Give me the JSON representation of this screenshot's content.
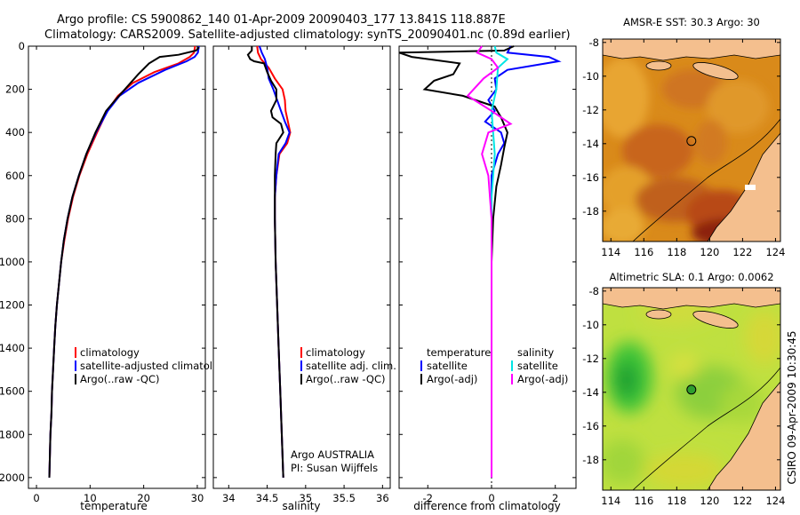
{
  "title": {
    "line1": "Argo profile: CS 5900862_140 01-Apr-2009 20090403_177 13.841S 118.887E",
    "line2": "Climatology: CARS2009. Satellite-adjusted climatology: synTS_20090401.nc (0.89d earlier)"
  },
  "colors": {
    "climatology": "#ff0000",
    "satellite": "#0000ff",
    "argo": "#000000",
    "satellite_salinity": "#00e5e5",
    "argo_salinity": "#ff00ff",
    "land": "#f4bf8e"
  },
  "chart_data": [
    {
      "type": "line",
      "name": "temperature-profile",
      "xlabel": "temperature",
      "ylabel": "",
      "xlim": [
        -1.5,
        31.5
      ],
      "ylim": [
        2050,
        0
      ],
      "xticks": [
        0,
        10,
        20,
        30
      ],
      "yticks": [
        0,
        200,
        400,
        600,
        800,
        1000,
        1200,
        1400,
        1600,
        1800,
        2000
      ],
      "legend": [
        "climatology",
        "satellite-adjusted climatology",
        "Argo(..raw -QC)"
      ],
      "series": [
        {
          "name": "climatology",
          "color": "#ff0000",
          "points": [
            [
              29.6,
              0
            ],
            [
              29.4,
              30
            ],
            [
              28.6,
              50
            ],
            [
              26.5,
              80
            ],
            [
              22,
              120
            ],
            [
              18,
              170
            ],
            [
              15.2,
              230
            ],
            [
              13.2,
              300
            ],
            [
              11.3,
              400
            ],
            [
              9.5,
              500
            ],
            [
              8.0,
              600
            ],
            [
              6.8,
              700
            ],
            [
              5.9,
              800
            ],
            [
              5.2,
              900
            ],
            [
              4.6,
              1000
            ],
            [
              4.2,
              1100
            ],
            [
              3.8,
              1200
            ],
            [
              3.5,
              1300
            ],
            [
              3.3,
              1400
            ],
            [
              3.1,
              1500
            ],
            [
              2.9,
              1600
            ],
            [
              2.8,
              1700
            ],
            [
              2.6,
              1800
            ],
            [
              2.5,
              1900
            ],
            [
              2.4,
              2000
            ]
          ]
        },
        {
          "name": "satellite-adjusted climatology",
          "color": "#0000ff",
          "points": [
            [
              30.3,
              0
            ],
            [
              30.1,
              30
            ],
            [
              29.5,
              50
            ],
            [
              28,
              70
            ],
            [
              24,
              110
            ],
            [
              19,
              170
            ],
            [
              15.5,
              230
            ],
            [
              13.3,
              300
            ],
            [
              11.1,
              400
            ],
            [
              9.3,
              500
            ],
            [
              7.9,
              600
            ],
            [
              6.7,
              700
            ],
            [
              5.8,
              800
            ],
            [
              5.1,
              900
            ],
            [
              4.6,
              1000
            ],
            [
              4.2,
              1100
            ],
            [
              3.8,
              1200
            ],
            [
              3.5,
              1300
            ],
            [
              3.3,
              1400
            ],
            [
              3.1,
              1500
            ],
            [
              2.9,
              1600
            ],
            [
              2.8,
              1700
            ],
            [
              2.6,
              1800
            ],
            [
              2.5,
              1900
            ],
            [
              2.4,
              2000
            ]
          ]
        },
        {
          "name": "Argo(..raw -QC)",
          "color": "#000000",
          "points": [
            [
              30.3,
              5
            ],
            [
              29.8,
              20
            ],
            [
              26.5,
              40
            ],
            [
              23,
              50
            ],
            [
              21,
              80
            ],
            [
              19,
              130
            ],
            [
              16.5,
              200
            ],
            [
              14.7,
              250
            ],
            [
              13,
              300
            ],
            [
              11,
              400
            ],
            [
              9.3,
              500
            ],
            [
              7.9,
              600
            ],
            [
              6.7,
              700
            ],
            [
              5.8,
              800
            ],
            [
              5.1,
              900
            ],
            [
              4.6,
              1000
            ],
            [
              4.2,
              1100
            ],
            [
              3.8,
              1200
            ],
            [
              3.5,
              1300
            ],
            [
              3.3,
              1400
            ],
            [
              3.1,
              1500
            ],
            [
              2.9,
              1600
            ],
            [
              2.8,
              1700
            ],
            [
              2.6,
              1800
            ],
            [
              2.5,
              1900
            ],
            [
              2.4,
              2000
            ]
          ]
        }
      ]
    },
    {
      "type": "line",
      "name": "salinity-profile",
      "xlabel": "salinity",
      "ylabel": "",
      "xlim": [
        33.8,
        36.1
      ],
      "ylim": [
        2050,
        0
      ],
      "xticks": [
        34,
        34.5,
        35,
        35.5,
        36
      ],
      "legend": [
        "climatology",
        "satellite adj. clim.",
        "Argo(..raw -QC)"
      ],
      "annotations": [
        "Argo AUSTRALIA",
        "PI: Susan Wijffels"
      ],
      "series": [
        {
          "name": "climatology",
          "color": "#ff0000",
          "points": [
            [
              34.37,
              0
            ],
            [
              34.38,
              30
            ],
            [
              34.42,
              60
            ],
            [
              34.52,
              100
            ],
            [
              34.6,
              150
            ],
            [
              34.7,
              200
            ],
            [
              34.73,
              250
            ],
            [
              34.74,
              300
            ],
            [
              34.77,
              350
            ],
            [
              34.8,
              400
            ],
            [
              34.76,
              450
            ],
            [
              34.66,
              500
            ],
            [
              34.62,
              600
            ],
            [
              34.6,
              700
            ],
            [
              34.6,
              800
            ],
            [
              34.61,
              1000
            ],
            [
              34.63,
              1200
            ],
            [
              34.65,
              1400
            ],
            [
              34.67,
              1600
            ],
            [
              34.69,
              1800
            ],
            [
              34.71,
              2000
            ]
          ]
        },
        {
          "name": "satellite adj. clim.",
          "color": "#0000ff",
          "points": [
            [
              34.4,
              0
            ],
            [
              34.43,
              30
            ],
            [
              34.47,
              60
            ],
            [
              34.5,
              100
            ],
            [
              34.52,
              150
            ],
            [
              34.58,
              200
            ],
            [
              34.63,
              250
            ],
            [
              34.68,
              300
            ],
            [
              34.73,
              350
            ],
            [
              34.79,
              400
            ],
            [
              34.74,
              450
            ],
            [
              34.65,
              500
            ],
            [
              34.62,
              600
            ],
            [
              34.6,
              700
            ],
            [
              34.6,
              800
            ],
            [
              34.61,
              1000
            ],
            [
              34.63,
              1200
            ],
            [
              34.65,
              1400
            ],
            [
              34.67,
              1600
            ],
            [
              34.69,
              1800
            ],
            [
              34.71,
              2000
            ]
          ]
        },
        {
          "name": "Argo(..raw -QC)",
          "color": "#000000",
          "points": [
            [
              34.3,
              0
            ],
            [
              34.3,
              20
            ],
            [
              34.25,
              40
            ],
            [
              34.28,
              60
            ],
            [
              34.33,
              70
            ],
            [
              34.46,
              80
            ],
            [
              34.5,
              120
            ],
            [
              34.55,
              160
            ],
            [
              34.62,
              200
            ],
            [
              34.62,
              250
            ],
            [
              34.55,
              300
            ],
            [
              34.57,
              330
            ],
            [
              34.68,
              360
            ],
            [
              34.71,
              400
            ],
            [
              34.62,
              450
            ],
            [
              34.61,
              500
            ],
            [
              34.6,
              600
            ],
            [
              34.6,
              700
            ],
            [
              34.6,
              800
            ],
            [
              34.61,
              1000
            ],
            [
              34.63,
              1200
            ],
            [
              34.65,
              1400
            ],
            [
              34.67,
              1600
            ],
            [
              34.69,
              1800
            ],
            [
              34.71,
              2000
            ]
          ]
        }
      ]
    },
    {
      "type": "line",
      "name": "difference-from-climatology",
      "xlabel": "difference from climatology",
      "ylabel": "",
      "xlim": [
        -2.9,
        2.65
      ],
      "ylim": [
        2050,
        0
      ],
      "xticks": [
        -2,
        0,
        2
      ],
      "legend_groups": [
        {
          "title": "temperature",
          "items": [
            "satellite",
            "Argo(-adj)"
          ]
        },
        {
          "title": "salinity",
          "items": [
            "satellite",
            "Argo(-adj)"
          ]
        }
      ],
      "series": [
        {
          "name": "temperature satellite",
          "color": "#0000ff",
          "points": [
            [
              0.6,
              0
            ],
            [
              0.5,
              30
            ],
            [
              1.8,
              50
            ],
            [
              2.1,
              70
            ],
            [
              0.5,
              110
            ],
            [
              0.1,
              150
            ],
            [
              0.15,
              200
            ],
            [
              -0.1,
              250
            ],
            [
              0.1,
              300
            ],
            [
              -0.2,
              350
            ],
            [
              0.3,
              400
            ],
            [
              0.4,
              450
            ],
            [
              0.2,
              500
            ],
            [
              0.0,
              600
            ],
            [
              0.0,
              800
            ],
            [
              0.0,
              1000
            ],
            [
              0.0,
              1500
            ],
            [
              0.0,
              2000
            ]
          ]
        },
        {
          "name": "temperature Argo(-adj)",
          "color": "#000000",
          "points": [
            [
              0.7,
              0
            ],
            [
              0.4,
              20
            ],
            [
              -2.9,
              30
            ],
            [
              -2.5,
              50
            ],
            [
              -1.0,
              80
            ],
            [
              -1.2,
              130
            ],
            [
              -1.8,
              160
            ],
            [
              -2.1,
              200
            ],
            [
              -0.9,
              230
            ],
            [
              0.1,
              280
            ],
            [
              0.3,
              330
            ],
            [
              0.5,
              400
            ],
            [
              0.4,
              470
            ],
            [
              0.3,
              550
            ],
            [
              0.15,
              650
            ],
            [
              0.05,
              800
            ],
            [
              0.0,
              1000
            ],
            [
              0.0,
              1500
            ],
            [
              0.0,
              2000
            ]
          ]
        },
        {
          "name": "salinity satellite",
          "color": "#00e5e5",
          "points": [
            [
              0.1,
              0
            ],
            [
              0.15,
              30
            ],
            [
              0.5,
              60
            ],
            [
              0.2,
              100
            ],
            [
              0.15,
              200
            ],
            [
              0.0,
              300
            ],
            [
              0.05,
              400
            ],
            [
              0.1,
              500
            ],
            [
              0.0,
              700
            ],
            [
              0.0,
              1000
            ],
            [
              0.0,
              1500
            ],
            [
              0.0,
              2000
            ]
          ]
        },
        {
          "name": "salinity Argo(-adj)",
          "color": "#ff00ff",
          "points": [
            [
              -0.3,
              0
            ],
            [
              -0.45,
              30
            ],
            [
              0.0,
              60
            ],
            [
              0.2,
              100
            ],
            [
              -0.25,
              150
            ],
            [
              -0.75,
              230
            ],
            [
              0.0,
              300
            ],
            [
              0.6,
              360
            ],
            [
              -0.1,
              400
            ],
            [
              -0.3,
              500
            ],
            [
              -0.1,
              600
            ],
            [
              0.0,
              800
            ],
            [
              0.0,
              1000
            ],
            [
              0.0,
              1500
            ],
            [
              0.0,
              2000
            ]
          ]
        }
      ]
    },
    {
      "type": "heatmap",
      "name": "sst-map",
      "title": "AMSR-E SST: 30.3 Argo: 30",
      "xlim": [
        113.5,
        124.3
      ],
      "ylim": [
        -19.8,
        -7.8
      ],
      "xticks": [
        114,
        116,
        118,
        120,
        122,
        124
      ],
      "yticks": [
        -8,
        -10,
        -12,
        -14,
        -16,
        -18
      ],
      "marker": {
        "lon": 118.887,
        "lat": -13.841
      }
    },
    {
      "type": "heatmap",
      "name": "sla-map",
      "title": "Altimetric SLA: 0.1 Argo: 0.0062",
      "xlim": [
        113.5,
        124.3
      ],
      "ylim": [
        -19.8,
        -7.8
      ],
      "xticks": [
        114,
        116,
        118,
        120,
        122,
        124
      ],
      "yticks": [
        -8,
        -10,
        -12,
        -14,
        -16,
        -18
      ],
      "marker": {
        "lon": 118.887,
        "lat": -13.841
      }
    }
  ],
  "credit": "CSIRO 09-Apr-2009 10:30:45"
}
